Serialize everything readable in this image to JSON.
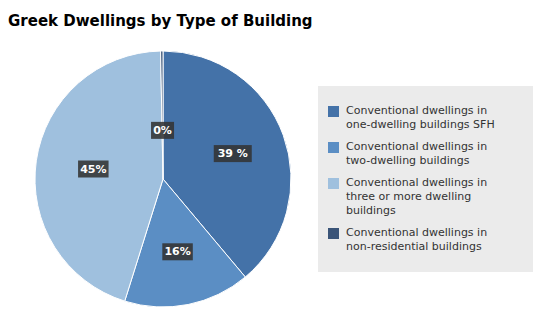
{
  "chart_data": {
    "type": "pie",
    "title": "Greek Dwellings by Type of Building",
    "categories": [
      "Conventional dwellings in\none-dwelling buildings SFH",
      "Conventional dwellings in\ntwo-dwelling buildings",
      "Conventional dwellings in\nthree or more dwelling\nbuildings",
      "Conventional dwellings in\nnon-residential buildings"
    ],
    "values": [
      39,
      16,
      45,
      0.3
    ],
    "value_labels": [
      "39 %",
      "16%",
      "45%",
      "0%"
    ],
    "colors": [
      "#4472A8",
      "#5B8EC4",
      "#9FC0DE",
      "#3A5478"
    ],
    "data_labels": true,
    "legend": "right"
  }
}
